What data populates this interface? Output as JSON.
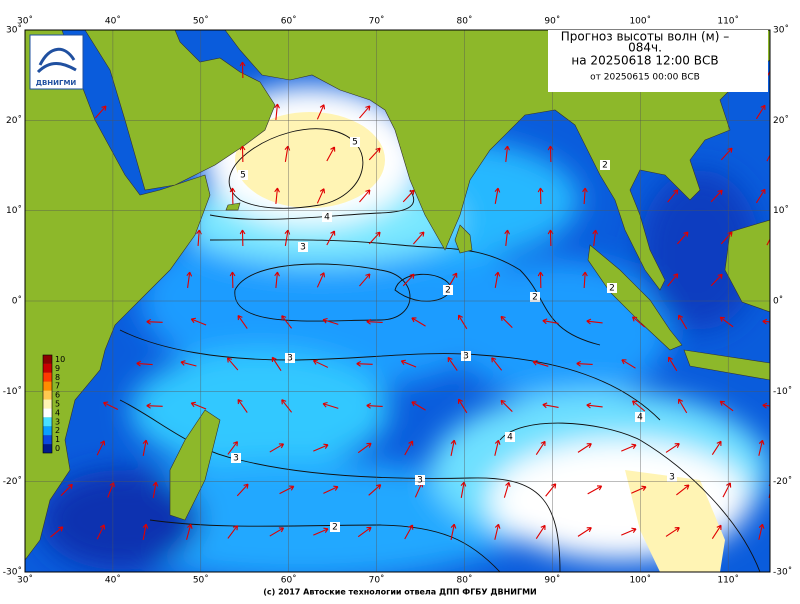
{
  "header": {
    "title_line1": "Прогноз высоты волн (м) –",
    "title_line2": "084ч.",
    "valid": "на 20250618 12:00 ВСВ",
    "issued": "от 20250615 00:00 ВСВ"
  },
  "logo": {
    "text": "ДВНИГМИ"
  },
  "axes": {
    "lon_ticks": [
      {
        "value": 30,
        "label": "30˚"
      },
      {
        "value": 40,
        "label": "40˚"
      },
      {
        "value": 50,
        "label": "50˚"
      },
      {
        "value": 60,
        "label": "60˚"
      },
      {
        "value": 70,
        "label": "70˚"
      },
      {
        "value": 80,
        "label": "80˚"
      },
      {
        "value": 90,
        "label": "90˚"
      },
      {
        "value": 100,
        "label": "100˚"
      },
      {
        "value": 110,
        "label": "110˚"
      }
    ],
    "lat_ticks": [
      {
        "value": 30,
        "label": "30˚"
      },
      {
        "value": 20,
        "label": "20˚"
      },
      {
        "value": 10,
        "label": "10˚"
      },
      {
        "value": 0,
        "label": "0˚"
      },
      {
        "value": -10,
        "label": "-10˚"
      },
      {
        "value": -20,
        "label": "-20˚"
      },
      {
        "value": -30,
        "label": "-30˚"
      }
    ]
  },
  "colorbar": {
    "ticks": [
      10,
      9,
      8,
      7,
      6,
      5,
      4,
      3,
      2,
      1,
      0
    ],
    "colors": [
      "#8a0000",
      "#c80000",
      "#ff3a00",
      "#ff8c00",
      "#ffc850",
      "#fff4b4",
      "#ffffff",
      "#48e0ff",
      "#0aa0ff",
      "#0a48e0",
      "#001a8c"
    ]
  },
  "contour_labels": [
    "5",
    "5",
    "4",
    "3",
    "2",
    "2",
    "3",
    "3",
    "3",
    "3",
    "4",
    "4",
    "3",
    "2",
    "2",
    "2"
  ],
  "footer": "(c) 2017 Автоские технологии отвела ДПП ФГБУ ДВНИГМИ"
}
